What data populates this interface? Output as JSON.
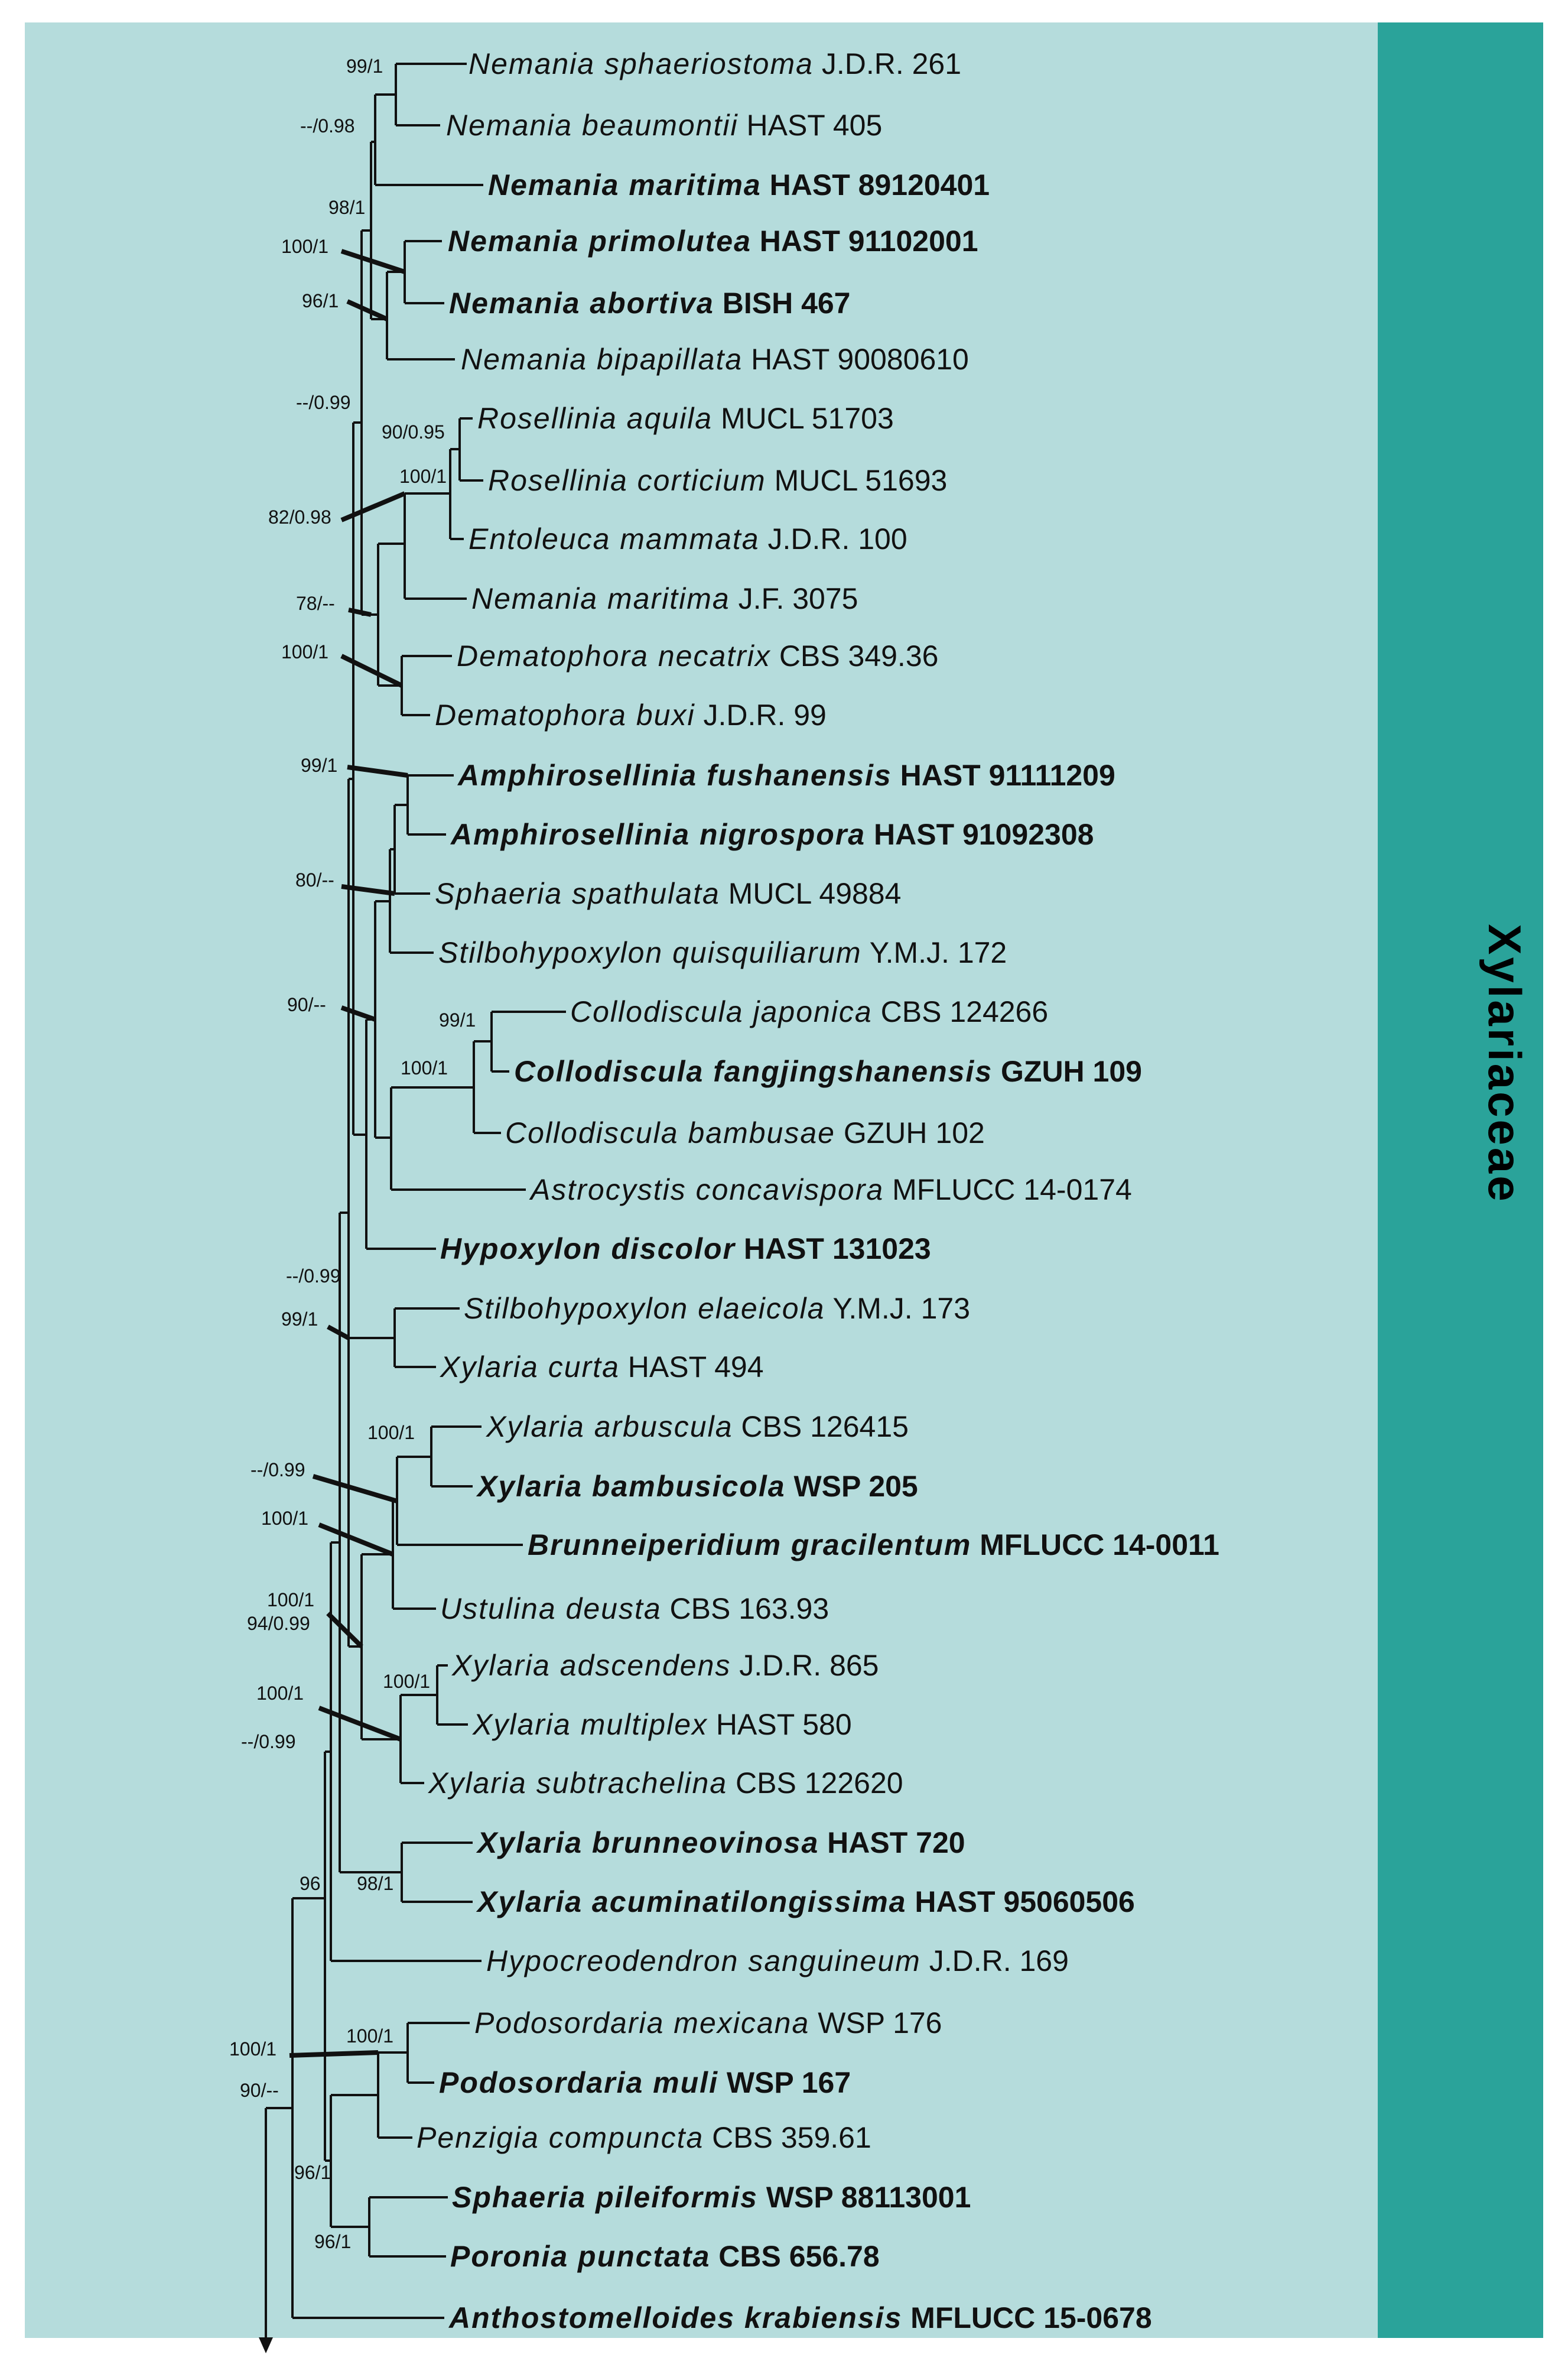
{
  "clade": {
    "label": "Xylariaceae",
    "panel_color": "#b5dcdc",
    "band_color": "#2aa39a"
  },
  "taxa": [
    {
      "genus": "Nemania sphaeriostoma",
      "voucher": "J.D.R. 261",
      "bold": false
    },
    {
      "genus": "Nemania beaumontii",
      "voucher": "HAST 405",
      "bold": false
    },
    {
      "genus": "Nemania maritima",
      "voucher": "HAST 89120401",
      "bold": true
    },
    {
      "genus": "Nemania primolutea",
      "voucher": "HAST 91102001",
      "bold": true
    },
    {
      "genus": "Nemania abortiva",
      "voucher": "BISH 467",
      "bold": true
    },
    {
      "genus": "Nemania bipapillata",
      "voucher": "HAST 90080610",
      "bold": false
    },
    {
      "genus": "Rosellinia aquila",
      "voucher": "MUCL 51703",
      "bold": false
    },
    {
      "genus": "Rosellinia corticium",
      "voucher": "MUCL 51693",
      "bold": false
    },
    {
      "genus": "Entoleuca mammata",
      "voucher": "J.D.R. 100",
      "bold": false
    },
    {
      "genus": "Nemania maritima",
      "voucher": "J.F. 3075",
      "bold": false
    },
    {
      "genus": "Dematophora necatrix",
      "voucher": "CBS 349.36",
      "bold": false
    },
    {
      "genus": "Dematophora buxi",
      "voucher": "J.D.R. 99",
      "bold": false
    },
    {
      "genus": "Amphirosellinia fushanensis",
      "voucher": "HAST 91111209",
      "bold": true
    },
    {
      "genus": "Amphirosellinia nigrospora",
      "voucher": "HAST 91092308",
      "bold": true
    },
    {
      "genus": "Sphaeria spathulata",
      "voucher": "MUCL 49884",
      "bold": false
    },
    {
      "genus": "Stilbohypoxylon quisquiliarum",
      "voucher": "Y.M.J. 172",
      "bold": false
    },
    {
      "genus": "Collodiscula japonica",
      "voucher": "CBS 124266",
      "bold": false
    },
    {
      "genus": "Collodiscula fangjingshanensis",
      "voucher": "GZUH 109",
      "bold": true
    },
    {
      "genus": "Collodiscula bambusae",
      "voucher": "GZUH 102",
      "bold": false
    },
    {
      "genus": "Astrocystis concavispora",
      "voucher": "MFLUCC 14-0174",
      "bold": false
    },
    {
      "genus": "Hypoxylon discolor",
      "voucher": "HAST 131023",
      "bold": true
    },
    {
      "genus": "Stilbohypoxylon elaeicola",
      "voucher": "Y.M.J. 173",
      "bold": false
    },
    {
      "genus": "Xylaria curta",
      "voucher": "HAST 494",
      "bold": false
    },
    {
      "genus": "Xylaria arbuscula",
      "voucher": "CBS 126415",
      "bold": false
    },
    {
      "genus": "Xylaria bambusicola",
      "voucher": "WSP 205",
      "bold": true
    },
    {
      "genus": "Brunneiperidium gracilentum",
      "voucher": "MFLUCC 14-0011",
      "bold": true
    },
    {
      "genus": "Ustulina deusta",
      "voucher": "CBS 163.93",
      "bold": false
    },
    {
      "genus": "Xylaria adscendens",
      "voucher": "J.D.R. 865",
      "bold": false
    },
    {
      "genus": "Xylaria multiplex",
      "voucher": "HAST 580",
      "bold": false
    },
    {
      "genus": "Xylaria subtrachelina",
      "voucher": "CBS 122620",
      "bold": false
    },
    {
      "genus": "Xylaria brunneovinosa",
      "voucher": "HAST 720",
      "bold": true
    },
    {
      "genus": "Xylaria acuminatilongissima",
      "voucher": "HAST 95060506",
      "bold": true
    },
    {
      "genus": "Hypocreodendron sanguineum",
      "voucher": "J.D.R. 169",
      "bold": false
    },
    {
      "genus": "Podosordaria mexicana",
      "voucher": "WSP 176",
      "bold": false
    },
    {
      "genus": "Podosordaria muli",
      "voucher": "WSP 167",
      "bold": true
    },
    {
      "genus": "Penzigia compuncta",
      "voucher": "CBS 359.61",
      "bold": false
    },
    {
      "genus": "Sphaeria pileiformis",
      "voucher": "WSP 88113001",
      "bold": true
    },
    {
      "genus": "Poronia punctata",
      "voucher": "CBS 656.78",
      "bold": true
    },
    {
      "genus": "Anthostomelloides krabiensis",
      "voucher": "MFLUCC 15-0678",
      "bold": true
    }
  ],
  "supports": [
    "99/1",
    "--/0.98",
    "98/1",
    "100/1",
    "96/1",
    "--/0.99",
    "90/0.95",
    "100/1",
    "82/0.98",
    "78/--",
    "100/1",
    "99/1",
    "80/--",
    "99/1",
    "90/--",
    "100/1",
    "--/0.99",
    "99/1",
    "100/1",
    "--/0.99",
    "100/1",
    "100/1",
    "94/0.99",
    "100/1",
    "100/1",
    "--/0.99",
    "96",
    "98/1",
    "100/1",
    "100/1",
    "90/--",
    "96/1",
    "96/1"
  ]
}
